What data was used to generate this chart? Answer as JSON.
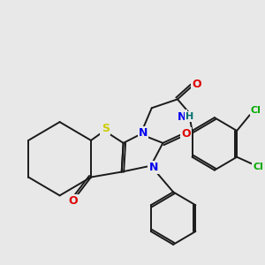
{
  "bg": "#e8e8e8",
  "bond_color": "#1a1a1a",
  "atom_colors": {
    "S": "#cccc00",
    "N": "#0000ee",
    "O": "#dd0000",
    "Cl": "#00aa00",
    "H": "#007070",
    "C": "#1a1a1a"
  },
  "lw": 1.4,
  "dbl_off": 2.8,
  "figsize": [
    3.0,
    3.0
  ],
  "dpi": 100
}
